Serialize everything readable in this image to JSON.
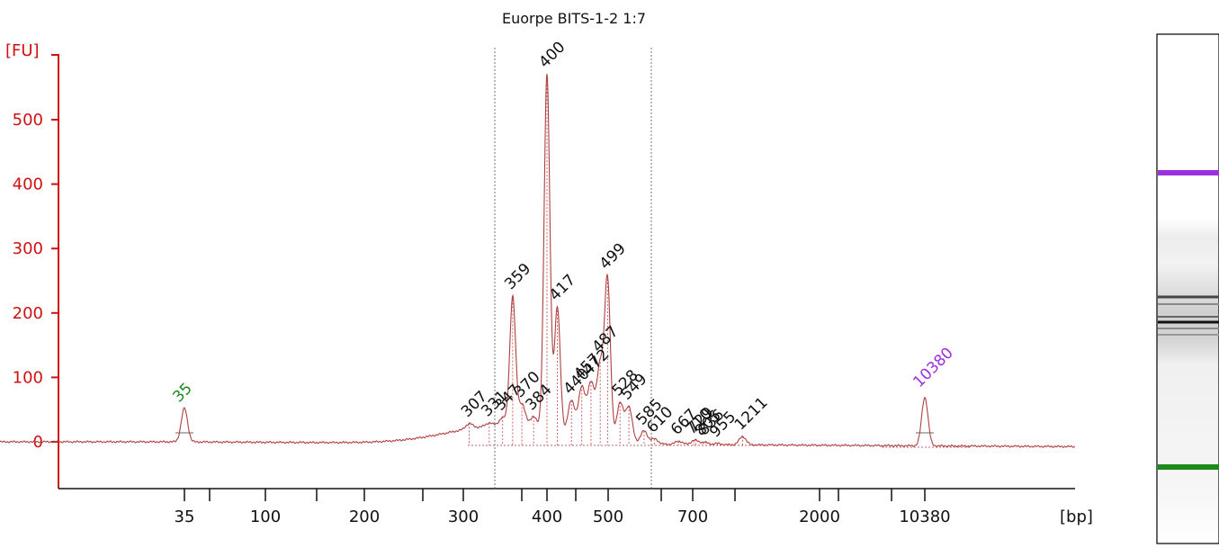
{
  "chart_data": {
    "type": "line",
    "title": "Euorpe BITS-1-2 1:7",
    "ylabel": "[FU]",
    "xlabel": "[bp]",
    "ylim": [
      -70,
      580
    ],
    "yticks": [
      0,
      100,
      200,
      300,
      400,
      500
    ],
    "xticks": [
      "35",
      "100",
      "200",
      "300",
      "400",
      "500",
      "700",
      "2000",
      "10380"
    ],
    "colors": {
      "axis": "#d01010",
      "trace": "#b04040",
      "lower_marker": "#1a8a1a",
      "upper_marker": "#9b30e0"
    },
    "markers": [
      {
        "label": "35",
        "height": 52,
        "color": "#1a8a1a"
      },
      {
        "label": "10380",
        "height": 75,
        "color": "#9b30e0"
      }
    ],
    "region": {
      "start_bp": 330,
      "end_bp": 600
    },
    "peaks": [
      {
        "label": "307",
        "x": 307,
        "height": 8
      },
      {
        "label": "331",
        "x": 331,
        "height": 5
      },
      {
        "label": "347",
        "x": 347,
        "height": 12
      },
      {
        "label": "359",
        "x": 359,
        "height": 200
      },
      {
        "label": "370",
        "x": 370,
        "height": 35
      },
      {
        "label": "384",
        "x": 384,
        "height": 18
      },
      {
        "label": "400",
        "x": 400,
        "height": 553
      },
      {
        "label": "417",
        "x": 417,
        "height": 195
      },
      {
        "label": "440",
        "x": 440,
        "height": 55
      },
      {
        "label": "457",
        "x": 457,
        "height": 78
      },
      {
        "label": "472",
        "x": 472,
        "height": 85
      },
      {
        "label": "487",
        "x": 487,
        "height": 115
      },
      {
        "label": "499",
        "x": 499,
        "height": 247
      },
      {
        "label": "528",
        "x": 528,
        "height": 60
      },
      {
        "label": "549",
        "x": 549,
        "height": 55
      },
      {
        "label": "585",
        "x": 585,
        "height": 20
      },
      {
        "label": "610",
        "x": 610,
        "height": 8
      },
      {
        "label": "667",
        "x": 667,
        "height": 5
      },
      {
        "label": "710",
        "x": 710,
        "height": 3
      },
      {
        "label": "729",
        "x": 729,
        "height": 4
      },
      {
        "label": "805",
        "x": 805,
        "height": 2
      },
      {
        "label": "836",
        "x": 836,
        "height": 2
      },
      {
        "label": "955",
        "x": 955,
        "height": 2
      },
      {
        "label": "1211",
        "x": 1211,
        "height": 13
      }
    ]
  }
}
